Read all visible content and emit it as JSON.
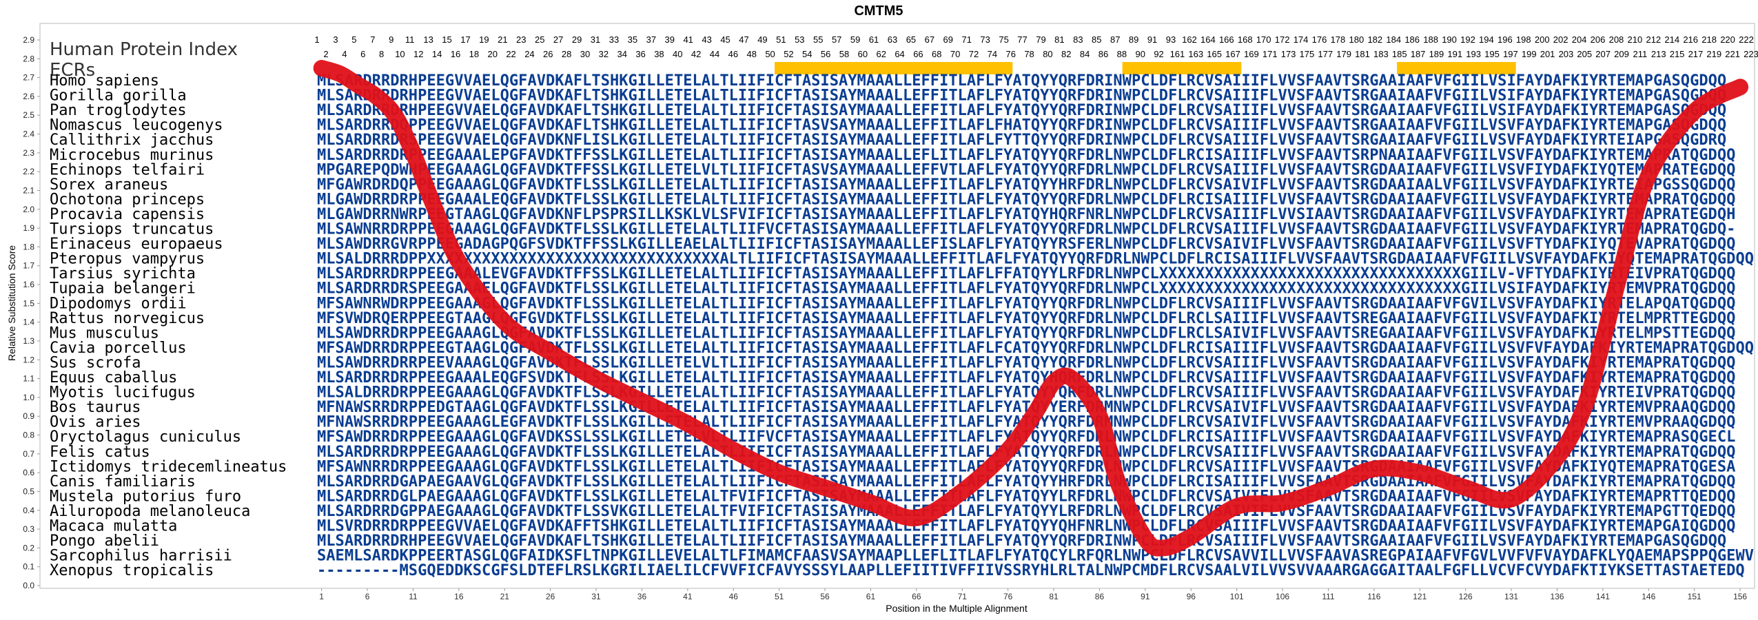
{
  "chart_data": {
    "type": "line",
    "title": "CMTM5",
    "xlabel": "Position in the Multiple Alignment",
    "ylabel": "Relative Substitution Score",
    "ylim": [
      0.0,
      2.9
    ],
    "yticks": [
      "0.0",
      "0.1",
      "0.2",
      "0.3",
      "0.4",
      "0.5",
      "0.6",
      "0.7",
      "0.8",
      "0.9",
      "1.0",
      "1.1",
      "1.2",
      "1.3",
      "1.4",
      "1.5",
      "1.6",
      "1.7",
      "1.8",
      "1.9",
      "2.0",
      "2.1",
      "2.2",
      "2.3",
      "2.4",
      "2.5",
      "2.6",
      "2.7",
      "2.8",
      "2.9"
    ],
    "xlim": [
      1,
      157
    ],
    "xticks": [
      1,
      6,
      11,
      16,
      21,
      26,
      31,
      36,
      41,
      46,
      51,
      56,
      61,
      66,
      71,
      76,
      81,
      86,
      91,
      96,
      101,
      106,
      111,
      116,
      121,
      126,
      131,
      136,
      141,
      146,
      151,
      156
    ],
    "header_label": "Human Protein Index",
    "ecr_label": "ECRs",
    "ecrs": [
      [
        51,
        76
      ],
      [
        89,
        101
      ],
      [
        119,
        131
      ]
    ],
    "protein_index_top": [
      "1",
      "3",
      "5",
      "7",
      "9",
      "11",
      "13",
      "15",
      "17",
      "19",
      "21",
      "23",
      "25",
      "27",
      "29",
      "31",
      "33",
      "35",
      "37",
      "39",
      "41",
      "43",
      "45",
      "47",
      "49",
      "51",
      "53",
      "55",
      "57",
      "59",
      "61",
      "63",
      "65",
      "67",
      "69",
      "71",
      "73",
      "75",
      "77",
      "79",
      "81",
      "83",
      "85",
      "87",
      "89",
      "91",
      "93",
      "162",
      "164",
      "166",
      "168",
      "170",
      "172",
      "174",
      "176",
      "178",
      "180",
      "182",
      "184",
      "186",
      "188",
      "190",
      "192",
      "194",
      "196",
      "198",
      "200",
      "202",
      "204",
      "206",
      "208",
      "210",
      "212",
      "214",
      "216",
      "218",
      "220",
      "222"
    ],
    "protein_index_bottom": [
      "2",
      "4",
      "6",
      "8",
      "10",
      "12",
      "14",
      "16",
      "18",
      "20",
      "22",
      "24",
      "26",
      "28",
      "30",
      "32",
      "34",
      "36",
      "38",
      "40",
      "42",
      "44",
      "46",
      "48",
      "50",
      "52",
      "54",
      "56",
      "58",
      "60",
      "62",
      "64",
      "66",
      "68",
      "70",
      "72",
      "74",
      "76",
      "78",
      "80",
      "82",
      "84",
      "86",
      "88",
      "90",
      "92",
      "161",
      "163",
      "165",
      "167",
      "169",
      "171",
      "173",
      "175",
      "177",
      "179",
      "181",
      "183",
      "185",
      "187",
      "189",
      "191",
      "193",
      "195",
      "197",
      "199",
      "201",
      "203",
      "205",
      "207",
      "209",
      "211",
      "213",
      "215",
      "217",
      "219",
      "221",
      "223"
    ],
    "species": [
      "Homo sapiens",
      "Gorilla gorilla",
      "Pan troglodytes",
      "Nomascus leucogenys",
      "Callithrix jacchus",
      "Microcebus murinus",
      "Echinops telfairi",
      "Sorex araneus",
      "Ochotona princeps",
      "Procavia capensis",
      "Tursiops truncatus",
      "Erinaceus europaeus",
      "Pteropus vampyrus",
      "Tarsius syrichta",
      "Tupaia belangeri",
      "Dipodomys ordii",
      "Rattus norvegicus",
      "Mus musculus",
      "Cavia porcellus",
      "Sus scrofa",
      "Equus caballus",
      "Myotis lucifugus",
      "Bos taurus",
      "Ovis aries",
      "Oryctolagus cuniculus",
      "Felis catus",
      "Ictidomys tridecemlineatus",
      "Canis familiaris",
      "Mustela putorius furo",
      "Ailuropoda melanoleuca",
      "Macaca mulatta",
      "Pongo abelii",
      "Sarcophilus harrisii",
      "Xenopus tropicalis"
    ],
    "sequences": [
      "MLSARDRRDRHPEEGVVAELQGFAVDKAFLTSHKGILLETELALTLIIFICFTASISAYMAAALLEFFITLAFLFYATQYYQRFDRINWPCLDFLRCVSAIIIFLVVSFAAVTSRGAAIAAFVFGIILVSIFAYDAFKIYRTEMAPGASQGDQQ",
      "MLSARDRRDRHPEEGVVAELQGFAVDKAFLTSHKGILLETELALTLIIFICFTASISAYMAAALLEFFITLAFLFYATQYYQRFDRINWPCLDFLRCVSAIIIFLVVSFAAVTSRGAAIAAFVFGIILVSIFAYDAFKIYRTEMAPGASQGDQQ",
      "MLSARDRRDRHPEEGVVAELQGFAVDKAFLTSHKGILLETELALTLIIFICFTASISAYMAAALLEFFITLAFLFYATQYYQRFDRINWPCLDFLRCVSAIIIFLVVSFAAVTSRGAAIAAFVFGIILVSIFAYDAFKIYRTEMAPGASQGDQQ",
      "MLSARDRRDQPPEEGVVAELQGFAVDKAFLTSHKGILLETELALTLIIFICFTASVSAYMAAALLEFFITLAFLFHATQYYQRFDRINWPCLDFLRCVSAIIIFLVVSFAAVTSRGAAIAAFVFGIILVSVFAYDAFKIYRTEMAPGASQGDQQ",
      "MLSARDRRDRSPEEGVVAELQGFAVDKNFLISLKGILLETELALTLIIFICFTASISAYMAAALLEFFITLAFLFYTTQYYQRFDRINWPCLDFLRCVSAIIIFLVVSFAAVTSRGAAIAAFVFGIILVSVFAYDAFKIYRTEIAPGASQGDRQ",
      "MLSARDRRDRPPEEGAAALEPGFAVDKTFFSSLKGILLETELALTLIIFICFTASISAYMAAALLEFLITLAFLFYATQYYQRFDRLNWPCLDFLRCISAIIIFLVVSFAAVTSRPNAAIAAFVFGIILVSVFAYDAFKIYRTEMAPRATQGDQQ",
      "MPGAREPQDWHPEEGAAAGLQGFAVDKTFFSSLKGILLETELVLTLIIFICFTASVSAYMAAALLEFFVTLAFLFYATQYYQRFDRLNWPCLDFLRCVSAIIIFLVVSFAAVTSRGDAAIAAFVFGIILVSVFIYDAFKIYQTEMAPRATEGDQQ",
      "MFGAWRDRDQPPEEGAAAGLQGFAVDKTFLSSLKGILLETELALTLIIFICFTASISAYMAAALLEFFITLAFLFYATQYYHRFDRLNWPCLDFLRCVSAIVIFLVVSFAAVTSRGDAAIAALVFGIILVSVFAYDAFKIYRTEIAPGSSQGDQQ",
      "MLGAWDRRDRPPEEGAAALEQGFAVDKTFLSSLKGILLETELALTLIIFICFTASISAYMAAALLEFFITLAFLFYATQYYQRFDRLNWPCLDFLRCISAIIIFLVVSFAAVTSRGDAAIAAFVFGIILVSVFAYDAFKIYRTEMAPRATQGDQQ",
      "MLGAWDRRNWRPEEGTAAGLQGFAVDKNFLPSPRSILLKSKLVLSFVIFICFTASISAYMAAALLEFFITLAFLFYATQYHQRFNRLNWPCLDFLRCVSAIIIFLVVSIAAVTSRGDAAIAAFVFGIILVSVFAYDAFKIYRTEMAPRATEGDQH",
      "MLSAWNRRDRPPEEGAAAGLQGFAVDKTFLSSLKGILLETELALTLIIFVCFTASISAYMAAALLEFFITLAFLFYATQYYQRFDRLNWPCLDFLRCVSAIIIFLVVSFAAVTSRGDAAIAAFVFGIILVSVFAYDAFKIYRTEMAPRATQGDQ-",
      "MLSAWDRRGVRPPEEGADAGPQGFSVDKTFFSSLKGILLEAELALTLIIFICFTASISAYMAAALLEFISLAFLFYATQYYRSFERLNWPCLDFLRCVSAIVIFLVVSFAAVTSRGDAAIAAFVFGIILVSVFTYDAFKIYQTEVAPRATQGDQQ",
      "MLSALDRRRDPPXXXXXXXXXXXXXXXXXXXXXXXXXXXXXXXXALTLIIFICFTASISAYMAAALLEFFITLAFLFYATQYYQRFDRLNWPCLDFLRCISAIIIFLVVSFAAVTSRGDAAIAAFVFGIILVSVFAYDAFKIYQTEMAPRATQGDQQ",
      "MLSARDRRDRPPEEGAAALEVGFAVDKTFFSSLKGILLETELALTLIIFICFTASISAYMAAALLEFFITLAFLFFATQYYLRFDRLNWPCLXXXXXXXXXXXXXXXXXXXXXXXXXXXXXXXXXGIILV-VFTYDAFKIYRTEIVPRATQGDQQ",
      "MLSARDRRDRSPEEGAAAELQGFAVDKTFLSSLKGILLETELALTLIIFICFTASISAYMAAALLEFFITLAFLFYATQYYQRFDRLNWPCLXXXXXXXXXXXXXXXXXXXXXXXXXXXXXXXXXGIILVSIFAYDAFKIYRTEMVPRATQGDQQ",
      "MFSAWNRWDRPPEEGAAAGLQGFAVDKTFLSSLKGILLETELALTLIIFICFTASISAYMAAALLEFFITLAFLFYATQYYQRFDRLNWPCLDFLRCVSAIIIFLVVSFAAVTSRGDAAIAAFVFGVILVSVFAYDAFKIYRTELAPQATQGDQQ",
      "MFSVWDRQERPPEEGTAAGLQGFGVDKTFLSSLKGILLETELALTLIIFICFTASISAYMAAALLEFFITLAFLFYATQYYQRFDRLNWPCLDFLRCLSAIIIFLVVSFAAVTSREGAAIAAFVFGIILVSVFAYDAFKIYRTELMPRTTEGDQQ",
      "MLSAWDRRDRPPEEGAAAGLQGFAVDKTFLSSLKGILLETELALTLIIFICFTASISAYMAAALLEFFITLAFLFYATQYYQRFDRLNWPCLDFLRCLSAIVIFLVVSFAAVTSREGAAIAAFVFGIILVSVFAYDAFKIYRTELMPSTTEGDQQ",
      "MFSAWDRRDRPPEEGTAAGLQGFAVDKTFLSSLKGILLETELALTLIIFICFTASISAYMAAALLEFFITLAFLFCATQYYQRFDRLNWPCLDFLRCISAIIIFLVVSFAAVTSRGDAAIAAFVFGIILVSVFVFAYDAFKIYRTEMAPRATQGDQQ",
      "MLSAWDRRDRRPEEVAAAGLQGFAVDKTFLSSLKGILLETELVLTLIIFICFTASISAYMAAALLEFFITLAFLFYATQYYQRFDRLNWPCLDFLRCVSAIIIFLVVSFAAVTSRGDAAIAAFVFGIILVSVFAYDAFKIYRTEMAPRATQGDQQ",
      "MLSARDRRDRPPEEGAAALEQGFSVDKTFLSSLKGILLETELALTLIIFICFTASISAYMAAALLEFFITLAFLFYATQYHQRFDRLNWPCLDFLRCVSAIIIFLVVSFAAVTSRGDAAIAAFVFGIILVSVFAYDAFKIYRTEMAPRATQGDQQ",
      "MLSALDRRDRPPEEGAAAGLQGFAVDKTFLSSLKGILLETELALTLIIFICFTASISAYMAAALLEFFITLAFLFYATQYYQRFDRLNWPCLDFLRCVSAIIIFLVVSFAAVTSRGDAAIAAFVFGIILVSVFAYDAFKIYRTEIVPRATQGDQQ",
      "MFNAWSRRDRPPEDGTAAGLQGFAVDKTFLSSLKGILLETELALTLIIFICFTASISAYMAAALLEFFITLAFLFYATQYYERFDRMNWPCLDFLRCVSAIVIFLVVSFAAVTSRGDAAIAAFVFGIILVSVFAYDAFKIYRTEMVPRAAQGDQQ",
      "MFNAWSRRDRPPEEGAAAGLEGFAVDKTFLSSLKGILLETELALTLIIFICFTASISAYMAAALLEFFITLAFLFYATQYYQRFDRMNWPCLDFLRCVSAIVIFLVVSFAAVTSRGDAAIAAFVFGIILVSVFAYDAFKIYRTEMVPRAAQGDQQ",
      "MFSAWDRRDRPPEEGAAAGLQGFAVDKSSLSSLKGILLETELVLTLIIFVCFTASISAYMAAALLEFFITLAFLFYATQYYQRFDRLNWPCLDFLRCISAIIIFLVVSFAAVTSRGDAAIAAFVFGIILVSVFAYDAFKIYRTEMAPRASQGECL",
      "MLSARDRRDRPPEEGAAAGLQGFAVDKTFLSSLKGILLETELALTLIIFICFTASISAYMAAALLEFFITLAFLFYATQYYQRFDRLNWPCLDFLRCVSAIIIFLVVSFAAVTSRGDAAIAAFVFGIILVSVFAYDAFKIYRTEMAPRATQGDQQ",
      "MFSAWNRRDRPPEEGAAAGLQGFAVDKTFLSSLKGILLETELALTLIIFICFTASISAYMAAALLEFFITLAFLFYATQYYQRFDRLNWPCLDFLRCVSAIIIFLVVSFAAVTSRGDAAIAAFVFGIILVSVFAYDAFKIYQTEMAPRATQGESA",
      "MLSARDRRDGAPAEGAAVGLQGFAVDKTFLSSLKGILLETELALTLIIFICFTASISAYMAAALLEFFITLAFLFYATQYYHRFDRLNWPCLDFLRCISAIIIFLVVSFAAVTSRGDAAIAAFVFGIILVSVFAYDAFKIYRTEMAPRATQGDQQ",
      "MLSARDRRDGLPAEGAAAGLQGFAVDKTFLSSLKGILLETELALTFVIFICFTASISAYMAAALLEFFITLAFLFYATQYYLRFDRLNWPCLDFLRCVSAIVIFLVVSFAAVTSRGDAAIAAFVFGIILVSVFAYDAFKIYRTEMAPRTTQEDQQ",
      "MLSARDRRDGPPAEGAAAGLQGFAVDKTFLSSVKGILLETELALTFVIFICFTASISAYMAAALLEFFITLAFLFYATQYYLRFDRLNWPCLDFLRCVSAIVIFLVVSFAAVTSRGDAAIAAFVFGIILVSVFAYDAFKIYRTEMAPGTTQEDQQ",
      "MLSVRDRRDRPPEEGVVAELQGFAVDKAFFTSHKGILLETELALTLIIFICFTASISAYMAAALLEFFITLAFLFYATQYYQHFNRLNWPCLDFLRCVSAIIIFLVVSFAAVTSRGDAAIAAFVFGIILVSVFAYDAFKIYRTEMAPGAIQGDQQ",
      "MLSARDRRDRHPEEGVVAELQGFAVDKAFLTSHKGILLETELALTLIIFICFTASISAYMAAALLEFFITLAFLFYATQYYQRFDRINWPCLDFLRCVSAIIIFLVVSFAAVTSRGAAIAAFVFGIILVSVFAYDAFKIYRTEMAPGASQGDQQ",
      "SAEMLSARDKPPEERTASGLQGFAIDKSFLTNPKGILLEVELALTLFIMAMCFAASVSAYMAAPLLEFLITLAFLFYATQCYLRFQRLNWPCLDFLRCVSAVVILLVVSFAAVASREGPAIAAFVFGVLVVFVFVAYDAFKLYQAEMAPSPPQGEWV",
      "---------MSGQEDDKSCGFSLDTEFLRSLKGRILIAELILCFVVFICFAVYSSSYLAAPLLEFIITIVFFIIVSSRYHLRLTALNWPCMDFLRCVSAALVILVVSVVAAARGAGGAITAALFGFLLVCVFCVYDAFKTIYKSETTASTAETEDQ"
    ],
    "series": [
      {
        "x": [
          1,
          3,
          5,
          7,
          9,
          11,
          13,
          16,
          21,
          26,
          31,
          36,
          41,
          46,
          51,
          56,
          61,
          66,
          71,
          76,
          79,
          81,
          83,
          86,
          88,
          91,
          93,
          96,
          101,
          106,
          111,
          116,
          121,
          126,
          131,
          136,
          139,
          141,
          143,
          146,
          151,
          156
        ],
        "y": [
          2.75,
          2.72,
          2.66,
          2.6,
          2.5,
          2.3,
          2.05,
          1.72,
          1.4,
          1.24,
          1.1,
          0.98,
          0.86,
          0.72,
          0.6,
          0.52,
          0.44,
          0.36,
          0.5,
          0.72,
          0.92,
          1.08,
          1.1,
          0.9,
          0.55,
          0.25,
          0.2,
          0.26,
          0.42,
          0.44,
          0.52,
          0.62,
          0.6,
          0.52,
          0.46,
          0.68,
          0.95,
          1.3,
          1.68,
          2.18,
          2.52,
          2.65
        ]
      }
    ],
    "line_color": "#e01018",
    "ecr_color": "#ffc000",
    "seq_color": "#0a3d91",
    "grid": false
  }
}
